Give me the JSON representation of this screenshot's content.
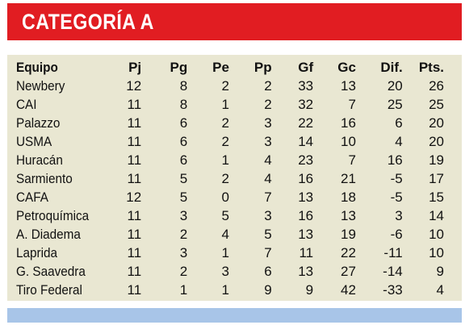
{
  "header": {
    "title": "CATEGORÍA A",
    "background": "#e11d22"
  },
  "table": {
    "background": "#e9e7d2",
    "columns": [
      "Equipo",
      "Pj",
      "Pg",
      "Pe",
      "Pp",
      "Gf",
      "Gc",
      "Dif.",
      "Pts."
    ],
    "rows": [
      [
        "Newbery",
        "12",
        "8",
        "2",
        "2",
        "33",
        "13",
        "20",
        "26"
      ],
      [
        "CAI",
        "11",
        "8",
        "1",
        "2",
        "32",
        "7",
        "25",
        "25"
      ],
      [
        "Palazzo",
        "11",
        "6",
        "2",
        "3",
        "22",
        "16",
        "6",
        "20"
      ],
      [
        "USMA",
        "11",
        "6",
        "2",
        "3",
        "14",
        "10",
        "4",
        "20"
      ],
      [
        "Huracán",
        "11",
        "6",
        "1",
        "4",
        "23",
        "7",
        "16",
        "19"
      ],
      [
        "Sarmiento",
        "11",
        "5",
        "2",
        "4",
        "16",
        "21",
        "-5",
        "17"
      ],
      [
        "CAFA",
        "12",
        "5",
        "0",
        "7",
        "13",
        "18",
        "-5",
        "15"
      ],
      [
        "Petroquímica",
        "11",
        "3",
        "5",
        "3",
        "16",
        "13",
        "3",
        "14"
      ],
      [
        "A. Diadema",
        "11",
        "2",
        "4",
        "5",
        "13",
        "19",
        "-6",
        "10"
      ],
      [
        "Laprida",
        "11",
        "3",
        "1",
        "7",
        "11",
        "22",
        "-11",
        "10"
      ],
      [
        "G. Saavedra",
        "11",
        "2",
        "3",
        "6",
        "13",
        "27",
        "-14",
        "9"
      ],
      [
        "Tiro Federal",
        "11",
        "1",
        "1",
        "9",
        "9",
        "42",
        "-33",
        "4"
      ]
    ]
  },
  "footer": {
    "color": "#a8c5e8"
  }
}
